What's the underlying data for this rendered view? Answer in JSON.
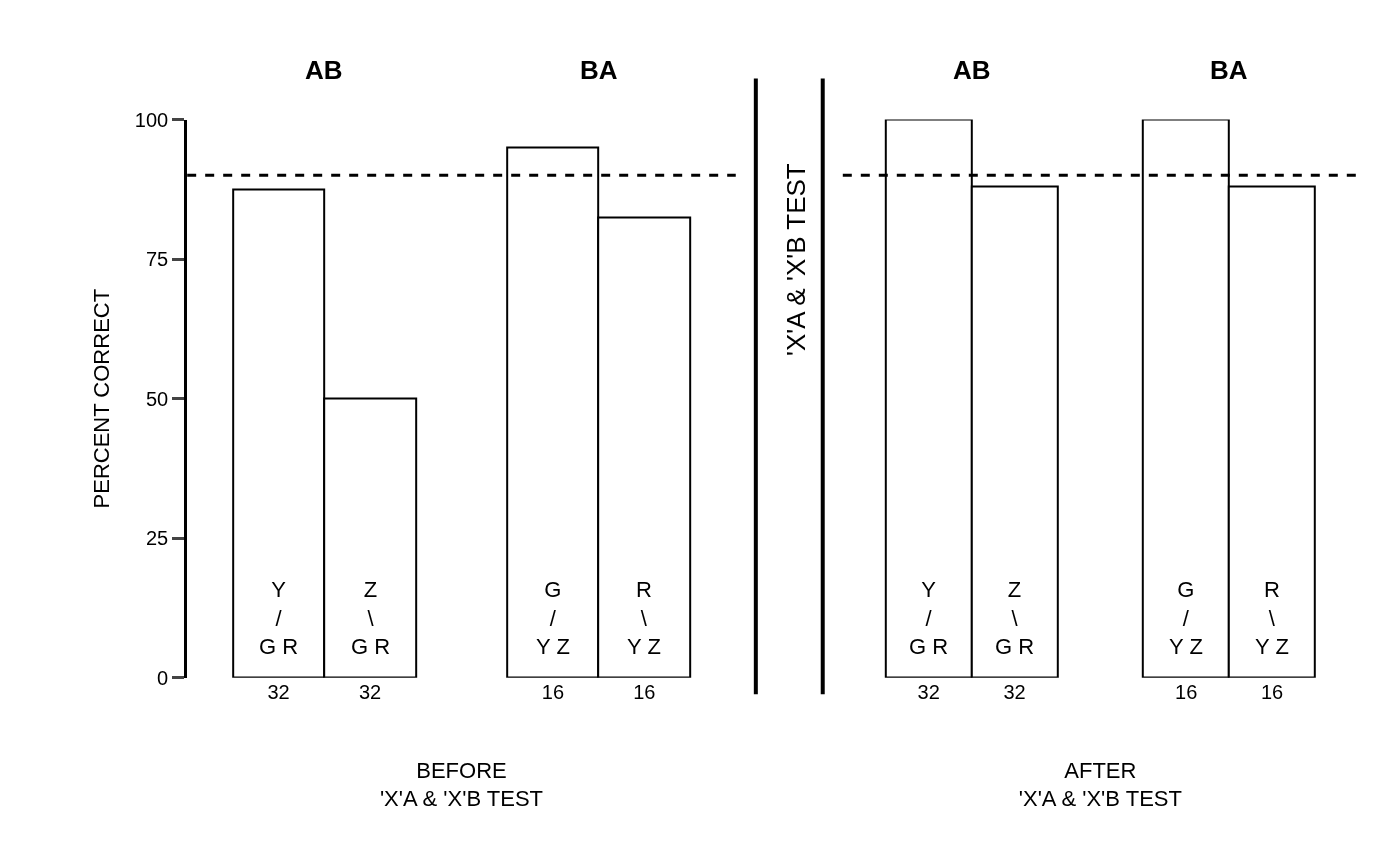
{
  "chart_data": [
    {
      "type": "bar",
      "categories": [
        "32",
        "32",
        null,
        "16",
        "16"
      ],
      "values": [
        87.5,
        50,
        null,
        95,
        82.5
      ],
      "color": "#ffffff",
      "ylabel": "PERCENT CORRECT",
      "xlabel": "BEFORE\n'X'A & 'X'B TEST",
      "ylim": [
        0,
        100
      ],
      "yticks": [
        0,
        25,
        50,
        75,
        100
      ],
      "ref_lines": [
        {
          "axis": "y",
          "value": 90,
          "line_style": "dashed",
          "color": "#000000"
        }
      ],
      "annotations": [
        "AB",
        "BA",
        "Y\n/\nG R",
        "Z\n\\\nG R",
        "G\n/\nY Z",
        "R\n\\\nY Z"
      ]
    },
    {
      "type": "bar",
      "categories": [
        "32",
        "32",
        null,
        "16",
        "16"
      ],
      "values": [
        100,
        88,
        null,
        100,
        88
      ],
      "color": "#ffffff",
      "xlabel": "AFTER\n'X'A & 'X'B TEST",
      "ylim": [
        0,
        100
      ],
      "tick_labels": "x",
      "ref_lines": [
        {
          "axis": "y",
          "value": 90,
          "line_style": "dashed",
          "color": "#000000"
        }
      ],
      "annotations": [
        "AB",
        "BA",
        "Y\n/\nG R",
        "Z\n\\\nG R",
        "G\n/\nY Z",
        "R\n\\\nY Z",
        "'X'A & 'X'B TEST"
      ]
    }
  ]
}
